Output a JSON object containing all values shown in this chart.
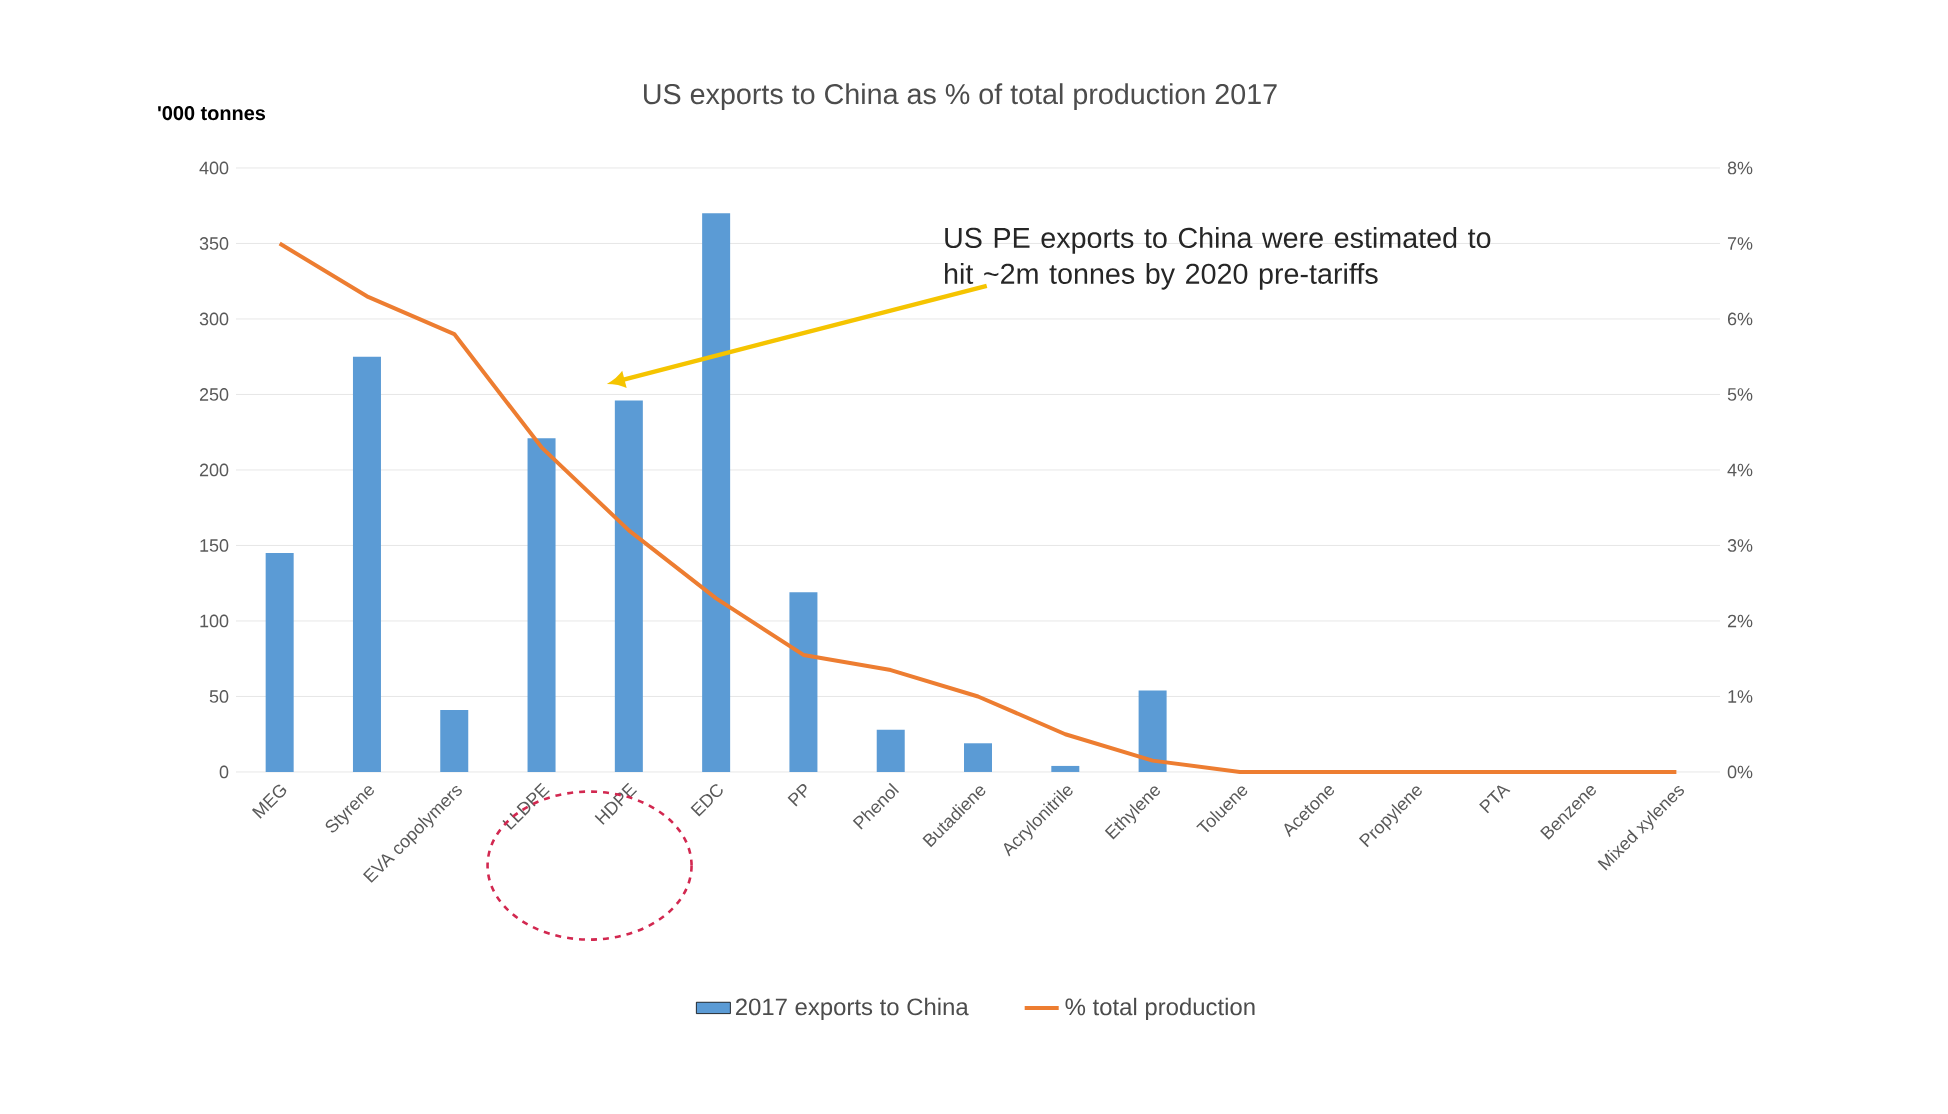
{
  "chart_data": {
    "type": "bar",
    "title": "US exports to China as % of total production 2017",
    "ylabel": "'000 tonnes",
    "categories": [
      "MEG",
      "Styrene",
      "EVA copolymers",
      "LLDPE",
      "HDPE",
      "EDC",
      "PP",
      "Phenol",
      "Butadiene",
      "Acrylonitrile",
      "Ethylene",
      "Toluene",
      "Acetone",
      "Propylene",
      "PTA",
      "Benzene",
      "Mixed xylenes"
    ],
    "series": [
      {
        "name": "2017 exports to China",
        "color": "#5b9bd5",
        "values": [
          145,
          275,
          41,
          221,
          246,
          370,
          119,
          28,
          19,
          4,
          54,
          0,
          0,
          0,
          0,
          0,
          0
        ]
      },
      {
        "name": "% total production",
        "type": "line",
        "axis": "y2",
        "color": "#ed7d31",
        "values": [
          7.0,
          6.3,
          5.8,
          4.3,
          3.2,
          2.3,
          1.55,
          1.35,
          1.0,
          0.5,
          0.15,
          0,
          0,
          0,
          0,
          0,
          0
        ]
      }
    ],
    "ylim": [
      0,
      400
    ],
    "yticks": [
      0,
      50,
      100,
      150,
      200,
      250,
      300,
      350,
      400
    ],
    "y2lim": [
      0,
      8
    ],
    "y2ticks": [
      {
        "value": 0,
        "label": "0%"
      },
      {
        "value": 1,
        "label": "1%"
      },
      {
        "value": 2,
        "label": "2%"
      },
      {
        "value": 3,
        "label": "3%"
      },
      {
        "value": 4,
        "label": "4%"
      },
      {
        "value": 5,
        "label": "5%"
      },
      {
        "value": 6,
        "label": "6%"
      },
      {
        "value": 7,
        "label": "7%"
      },
      {
        "value": 8,
        "label": "8%"
      }
    ],
    "annotations": [
      "US PE exports to China were estimated to hit ~2m tonnes by 2020 pre-tariffs"
    ],
    "grid": "y",
    "legend": "bottom",
    "marker": "none"
  }
}
